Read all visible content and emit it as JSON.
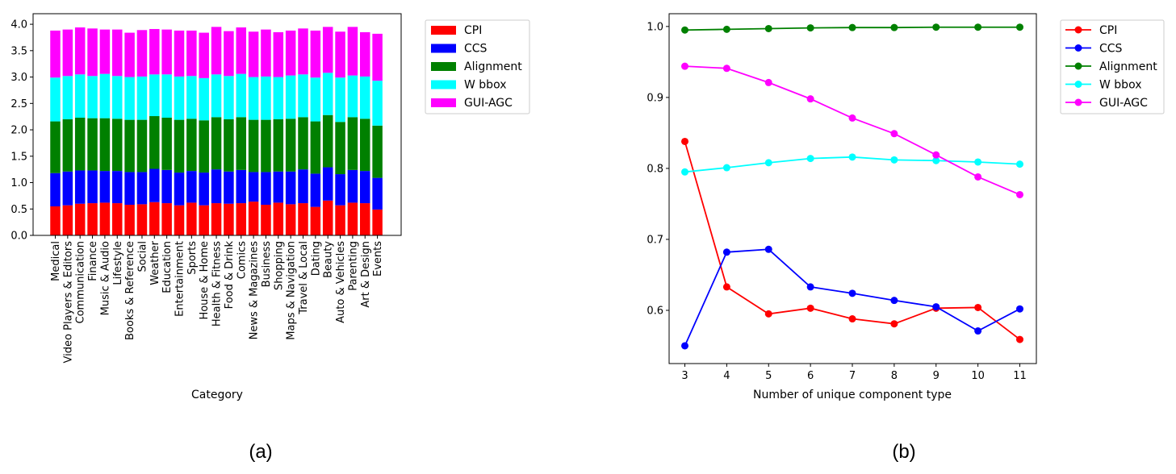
{
  "colors": {
    "CPI": "#ff0000",
    "CCS": "#0000ff",
    "Alignment": "#008000",
    "W bbox": "#00ffff",
    "GUI-AGC": "#ff00ff"
  },
  "chart_data": [
    {
      "type": "bar",
      "stacked": true,
      "caption": "(a)",
      "title": "",
      "xlabel": "Category",
      "ylabel": "",
      "ylim": [
        0,
        4.2
      ],
      "yticks": [
        "0.0",
        "0.5",
        "1.0",
        "1.5",
        "2.0",
        "2.5",
        "3.0",
        "3.5",
        "4.0"
      ],
      "legend": "outside-right",
      "categories": [
        "Medical",
        "Video Players & Editors",
        "Communication",
        "Finance",
        "Music & Audio",
        "Lifestyle",
        "Books & Reference",
        "Social",
        "Weather",
        "Education",
        "Entertainment",
        "Sports",
        "House & Home",
        "Health & Fitness",
        "Food & Drink",
        "Comics",
        "News & Magazines",
        "Business",
        "Shopping",
        "Maps & Navigation",
        "Travel & Local",
        "Dating",
        "Beauty",
        "Auto & Vehicles",
        "Parenting",
        "Art & Design",
        "Events"
      ],
      "series": [
        {
          "name": "CPI",
          "values": [
            0.55,
            0.57,
            0.6,
            0.61,
            0.62,
            0.61,
            0.58,
            0.59,
            0.63,
            0.61,
            0.57,
            0.62,
            0.57,
            0.61,
            0.6,
            0.61,
            0.64,
            0.58,
            0.62,
            0.59,
            0.61,
            0.54,
            0.66,
            0.57,
            0.62,
            0.61,
            0.49
          ]
        },
        {
          "name": "CCS",
          "values": [
            0.63,
            0.64,
            0.63,
            0.62,
            0.6,
            0.61,
            0.62,
            0.61,
            0.63,
            0.63,
            0.62,
            0.6,
            0.62,
            0.64,
            0.61,
            0.63,
            0.56,
            0.62,
            0.59,
            0.62,
            0.64,
            0.63,
            0.63,
            0.59,
            0.62,
            0.61,
            0.6
          ]
        },
        {
          "name": "Alignment",
          "values": [
            0.98,
            0.99,
            1.0,
            0.99,
            1.0,
            0.99,
            0.99,
            0.99,
            1.0,
            0.99,
            1.0,
            0.99,
            0.99,
            0.99,
            0.99,
            1.0,
            0.99,
            0.99,
            0.99,
            1.0,
            0.99,
            0.99,
            0.99,
            0.99,
            1.0,
            0.99,
            0.99
          ]
        },
        {
          "name": "W bbox",
          "values": [
            0.83,
            0.82,
            0.82,
            0.8,
            0.84,
            0.81,
            0.81,
            0.82,
            0.79,
            0.82,
            0.82,
            0.81,
            0.8,
            0.81,
            0.82,
            0.82,
            0.81,
            0.82,
            0.8,
            0.82,
            0.81,
            0.83,
            0.8,
            0.84,
            0.79,
            0.8,
            0.85
          ]
        },
        {
          "name": "GUI-AGC",
          "values": [
            0.89,
            0.88,
            0.89,
            0.9,
            0.84,
            0.88,
            0.84,
            0.88,
            0.86,
            0.85,
            0.87,
            0.86,
            0.86,
            0.9,
            0.85,
            0.88,
            0.86,
            0.89,
            0.85,
            0.85,
            0.87,
            0.89,
            0.87,
            0.87,
            0.92,
            0.84,
            0.89
          ]
        }
      ]
    },
    {
      "type": "line",
      "caption": "(b)",
      "title": "",
      "xlabel": "Number of unique component type",
      "ylabel": "",
      "x": [
        3,
        4,
        5,
        6,
        7,
        8,
        9,
        10,
        11
      ],
      "xticks": [
        "3",
        "4",
        "5",
        "6",
        "7",
        "8",
        "9",
        "10",
        "11"
      ],
      "ylim": [
        0.525,
        1.018
      ],
      "yticks": [
        "0.6",
        "0.7",
        "0.8",
        "0.9",
        "1.0"
      ],
      "legend": "outside-right",
      "series": [
        {
          "name": "CPI",
          "values": [
            0.838,
            0.633,
            0.595,
            0.603,
            0.588,
            0.581,
            0.603,
            0.604,
            0.559
          ]
        },
        {
          "name": "CCS",
          "values": [
            0.55,
            0.682,
            0.686,
            0.633,
            0.624,
            0.614,
            0.605,
            0.571,
            0.602
          ]
        },
        {
          "name": "Alignment",
          "values": [
            0.995,
            0.996,
            0.997,
            0.998,
            0.9985,
            0.9985,
            0.999,
            0.999,
            0.999
          ]
        },
        {
          "name": "W bbox",
          "values": [
            0.795,
            0.801,
            0.808,
            0.814,
            0.816,
            0.812,
            0.811,
            0.809,
            0.806
          ]
        },
        {
          "name": "GUI-AGC",
          "values": [
            0.944,
            0.941,
            0.921,
            0.898,
            0.871,
            0.849,
            0.819,
            0.788,
            0.763
          ]
        }
      ]
    }
  ]
}
